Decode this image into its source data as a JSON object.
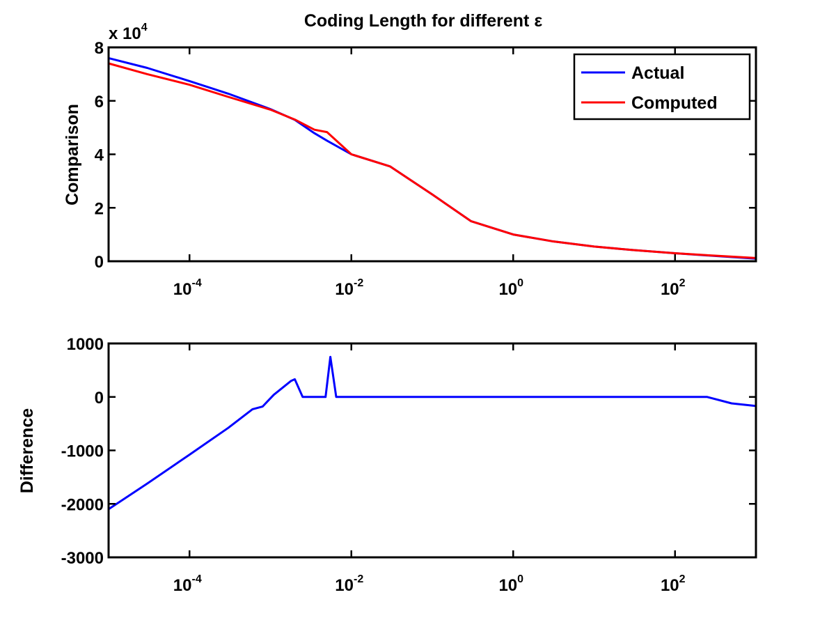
{
  "chart_data": [
    {
      "type": "line",
      "title": "Coding Length for different ε",
      "xlabel": "",
      "ylabel": "Comparison",
      "xscale": "log",
      "xlim": [
        1e-05,
        1000
      ],
      "ylim": [
        0,
        80000
      ],
      "yexponent_label": "x 10",
      "yexponent_power": "4",
      "ytick_values": [
        0,
        20000,
        40000,
        60000,
        80000
      ],
      "ytick_labels": [
        "0",
        "2",
        "4",
        "6",
        "8"
      ],
      "xtick_values": [
        0.0001,
        0.01,
        1,
        100
      ],
      "xtick_base": "10",
      "xtick_powers": [
        "-4",
        "-2",
        "0",
        "2"
      ],
      "grid": false,
      "legend_position": "top-right",
      "series": [
        {
          "name": "Actual",
          "color": "#0000ff",
          "x": [
            1e-05,
            3e-05,
            0.0001,
            0.0003,
            0.001,
            0.002,
            0.0035,
            0.005,
            0.01,
            0.03,
            0.1,
            0.3,
            1,
            3,
            10,
            30,
            100,
            300,
            1000
          ],
          "y": [
            76000,
            72300,
            67400,
            62700,
            56900,
            52900,
            47900,
            45100,
            40000,
            35500,
            25000,
            15000,
            10000,
            7500,
            5500,
            4200,
            3000,
            2000,
            1000
          ]
        },
        {
          "name": "Computed",
          "color": "#ff0000",
          "x": [
            1e-05,
            3e-05,
            0.0001,
            0.0003,
            0.001,
            0.002,
            0.0035,
            0.005,
            0.01,
            0.03,
            0.1,
            0.3,
            1,
            3,
            10,
            30,
            100,
            300,
            1000
          ],
          "y": [
            74000,
            70000,
            66000,
            61500,
            56700,
            53000,
            49200,
            48300,
            40000,
            35500,
            25000,
            15000,
            10000,
            7500,
            5500,
            4200,
            3000,
            2100,
            1200
          ]
        }
      ]
    },
    {
      "type": "line",
      "title": "",
      "xlabel": "",
      "ylabel": "Difference",
      "xscale": "log",
      "xlim": [
        1e-05,
        1000
      ],
      "ylim": [
        -3000,
        1000
      ],
      "ytick_values": [
        -3000,
        -2000,
        -1000,
        0,
        1000
      ],
      "ytick_labels": [
        "-3000",
        "-2000",
        "-1000",
        "0",
        "1000"
      ],
      "xtick_values": [
        0.0001,
        0.01,
        1,
        100
      ],
      "xtick_base": "10",
      "xtick_powers": [
        "-4",
        "-2",
        "0",
        "2"
      ],
      "grid": false,
      "series": [
        {
          "name": "",
          "color": "#0000ff",
          "x": [
            1e-05,
            3e-05,
            0.0001,
            0.0003,
            0.0006,
            0.0008,
            0.0011,
            0.0018,
            0.002,
            0.0025,
            0.004,
            0.0048,
            0.0055,
            0.0065,
            0.01,
            1,
            10,
            100,
            250,
            500,
            1000
          ],
          "y": [
            -2100,
            -1620,
            -1080,
            -580,
            -230,
            -180,
            40,
            300,
            330,
            0,
            0,
            0,
            750,
            0,
            0,
            0,
            0,
            0,
            0,
            -120,
            -170
          ]
        }
      ]
    }
  ]
}
